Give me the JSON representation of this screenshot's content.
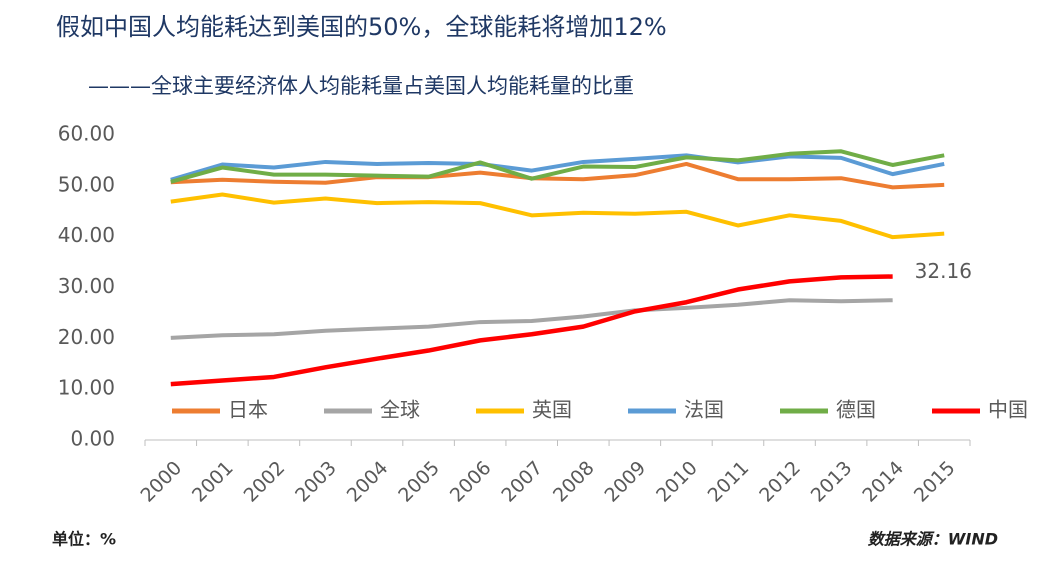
{
  "chart_data": {
    "type": "line",
    "title": "假如中国人均能耗达到美国的50%，全球能耗将增加12%",
    "subtitle": "———全球主要经济体人均能耗量占美国人均能耗量的比重",
    "unit_note": "单位：%",
    "source": "数据来源：WIND",
    "categories": [
      "2000",
      "2001",
      "2002",
      "2003",
      "2004",
      "2005",
      "2006",
      "2007",
      "2008",
      "2009",
      "2010",
      "2011",
      "2012",
      "2013",
      "2014",
      "2015"
    ],
    "ylim": [
      0,
      60
    ],
    "yticks": [
      {
        "value": 0,
        "label": "0.00"
      },
      {
        "value": 10,
        "label": "10.00"
      },
      {
        "value": 20,
        "label": "20.00"
      },
      {
        "value": 30,
        "label": "30.00"
      },
      {
        "value": 40,
        "label": "40.00"
      },
      {
        "value": 50,
        "label": "50.00"
      },
      {
        "value": 60,
        "label": "60.00"
      }
    ],
    "grid": false,
    "legend": "bottom",
    "series": [
      {
        "name": "日本",
        "color": "#ed7d31",
        "values": [
          50.7,
          51.2,
          50.8,
          50.6,
          51.7,
          51.7,
          52.6,
          51.5,
          51.3,
          52.1,
          54.3,
          51.3,
          51.3,
          51.5,
          49.7,
          50.2
        ]
      },
      {
        "name": "全球",
        "color": "#a5a5a5",
        "values": [
          20.1,
          20.6,
          20.8,
          21.5,
          21.9,
          22.3,
          23.2,
          23.4,
          24.3,
          25.5,
          26.0,
          26.6,
          27.5,
          27.3,
          27.5,
          null
        ]
      },
      {
        "name": "英国",
        "color": "#ffc000",
        "values": [
          46.9,
          48.3,
          46.7,
          47.5,
          46.6,
          46.8,
          46.6,
          44.2,
          44.7,
          44.5,
          44.9,
          42.2,
          44.2,
          43.1,
          39.9,
          40.6
        ]
      },
      {
        "name": "法国",
        "color": "#5b9bd5",
        "values": [
          51.2,
          54.2,
          53.6,
          54.7,
          54.3,
          54.5,
          54.3,
          53.0,
          54.7,
          55.3,
          56.0,
          54.6,
          55.8,
          55.5,
          52.3,
          54.3
        ]
      },
      {
        "name": "德国",
        "color": "#70ad47",
        "values": [
          50.8,
          53.6,
          52.2,
          52.2,
          52.0,
          51.8,
          54.6,
          51.4,
          53.8,
          53.7,
          55.6,
          55.0,
          56.3,
          56.8,
          54.1,
          56.0
        ]
      },
      {
        "name": "中国",
        "color": "#ff0000",
        "values": [
          11.0,
          11.7,
          12.4,
          14.3,
          16.0,
          17.6,
          19.6,
          20.8,
          22.3,
          25.3,
          27.1,
          29.6,
          31.2,
          32.0,
          32.16,
          null
        ]
      }
    ]
  }
}
